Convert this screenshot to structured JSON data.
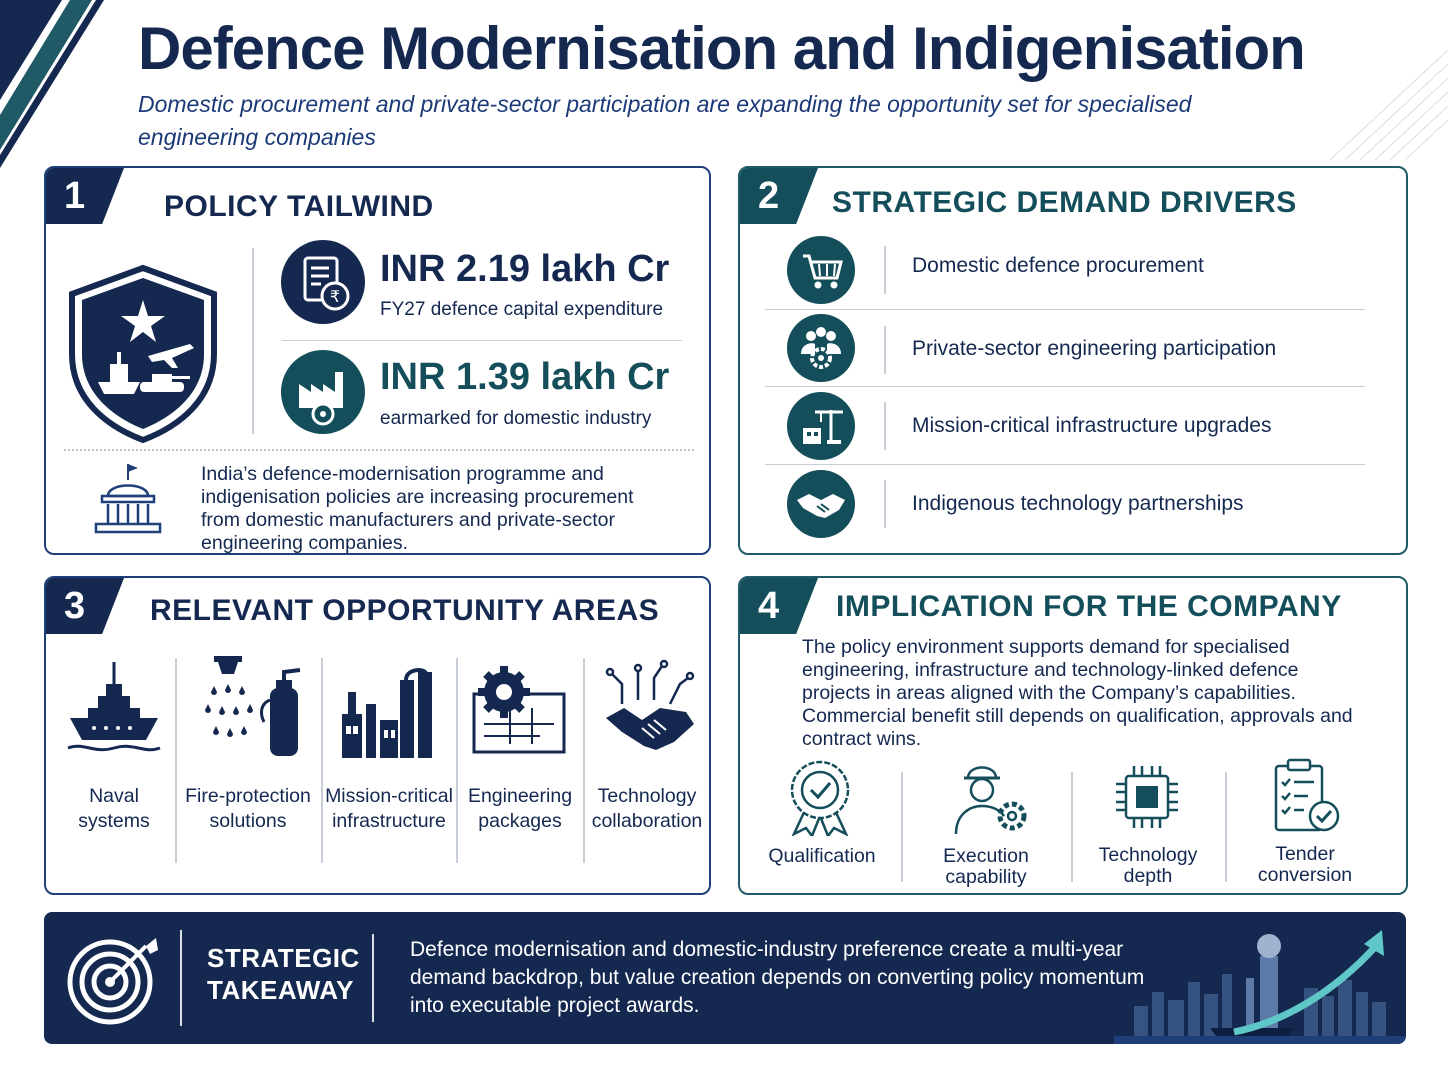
{
  "header": {
    "title": "Defence Modernisation and Indigenisation",
    "subtitle": "Domestic procurement and private-sector participation are expanding the opportunity set for specialised engineering companies"
  },
  "panel1": {
    "number": "1",
    "title": "POLICY TAILWIND",
    "stat1_value": "INR 2.19 lakh Cr",
    "stat1_label": "FY27 defence capital expenditure",
    "stat2_value": "INR 1.39 lakh Cr",
    "stat2_label": "earmarked for domestic industry",
    "note": "India’s defence-modernisation programme and indigenisation policies are increasing procurement from domestic manufacturers and private-sector engineering companies."
  },
  "panel2": {
    "number": "2",
    "title": "STRATEGIC DEMAND DRIVERS",
    "drivers": [
      {
        "label": "Domestic defence procurement",
        "icon": "shopping-cart-icon"
      },
      {
        "label": "Private-sector engineering participation",
        "icon": "team-gear-icon"
      },
      {
        "label": "Mission-critical infrastructure upgrades",
        "icon": "construction-crane-icon"
      },
      {
        "label": "Indigenous technology partnerships",
        "icon": "handshake-icon"
      }
    ]
  },
  "panel3": {
    "number": "3",
    "title": "RELEVANT OPPORTUNITY AREAS",
    "areas": [
      {
        "line1": "Naval",
        "line2": "systems",
        "icon": "naval-ship-icon"
      },
      {
        "line1": "Fire-protection",
        "line2": "solutions",
        "icon": "fire-sprinkler-icon"
      },
      {
        "line1": "Mission-critical",
        "line2": "infrastructure",
        "icon": "industrial-plant-icon"
      },
      {
        "line1": "Engineering",
        "line2": "packages",
        "icon": "gear-blueprint-icon"
      },
      {
        "line1": "Technology",
        "line2": "collaboration",
        "icon": "tech-handshake-icon"
      }
    ]
  },
  "panel4": {
    "number": "4",
    "title": "IMPLICATION FOR THE COMPANY",
    "text": "The policy environment supports demand for specialised engineering, infrastructure and technology-linked defence projects in areas aligned with the Company’s capabilities. Commercial benefit still depends on qualification, approvals and contract wins.",
    "items": [
      {
        "line1": "Qualification",
        "line2": "",
        "icon": "certification-badge-icon"
      },
      {
        "line1": "Execution",
        "line2": "capability",
        "icon": "engineer-gear-icon"
      },
      {
        "line1": "Technology",
        "line2": "depth",
        "icon": "microchip-icon"
      },
      {
        "line1": "Tender",
        "line2": "conversion",
        "icon": "checklist-icon"
      }
    ]
  },
  "takeaway": {
    "title_line1": "STRATEGIC",
    "title_line2": "TAKEAWAY",
    "text": "Defence modernisation and domestic-industry preference create a multi-year demand backdrop, but value creation depends on converting policy momentum into executable project awards."
  },
  "colors": {
    "navy": "#142850",
    "teal": "#134e5a",
    "accent_teal": "#5fc7c8"
  }
}
